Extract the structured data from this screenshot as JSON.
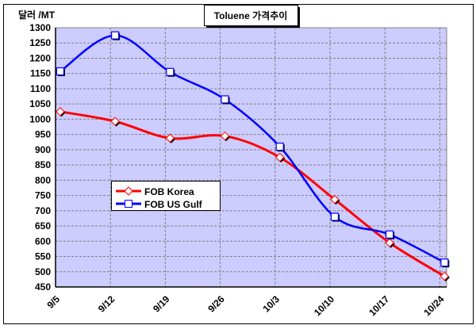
{
  "chart_data": {
    "type": "line",
    "title": "Toluene 가격추이",
    "ylabel": "달러 /MT",
    "xlabel": "",
    "ylim": [
      450,
      1300
    ],
    "yticks": [
      450,
      500,
      550,
      600,
      650,
      700,
      750,
      800,
      850,
      900,
      950,
      1000,
      1050,
      1100,
      1150,
      1200,
      1250,
      1300
    ],
    "xticks": [
      "9/5",
      "9/12",
      "9/19",
      "9/26",
      "10/3",
      "10/10",
      "10/17",
      "10/24"
    ],
    "x_days_from_9_5": [
      0.6,
      7.6,
      14.6,
      21.6,
      28.6,
      35.6,
      42.6,
      49.6
    ],
    "grid": true,
    "legend_position": "center-left",
    "series": [
      {
        "name": "FOB Korea",
        "color": "#ff0000",
        "marker": "diamond",
        "values": [
          1025,
          993,
          938,
          945,
          875,
          737,
          595,
          485
        ]
      },
      {
        "name": "FOB US Gulf",
        "color": "#0000ff",
        "marker": "square",
        "values": [
          1157,
          1275,
          1155,
          1065,
          910,
          680,
          622,
          530
        ]
      }
    ],
    "plot_background": "#ccccff"
  }
}
